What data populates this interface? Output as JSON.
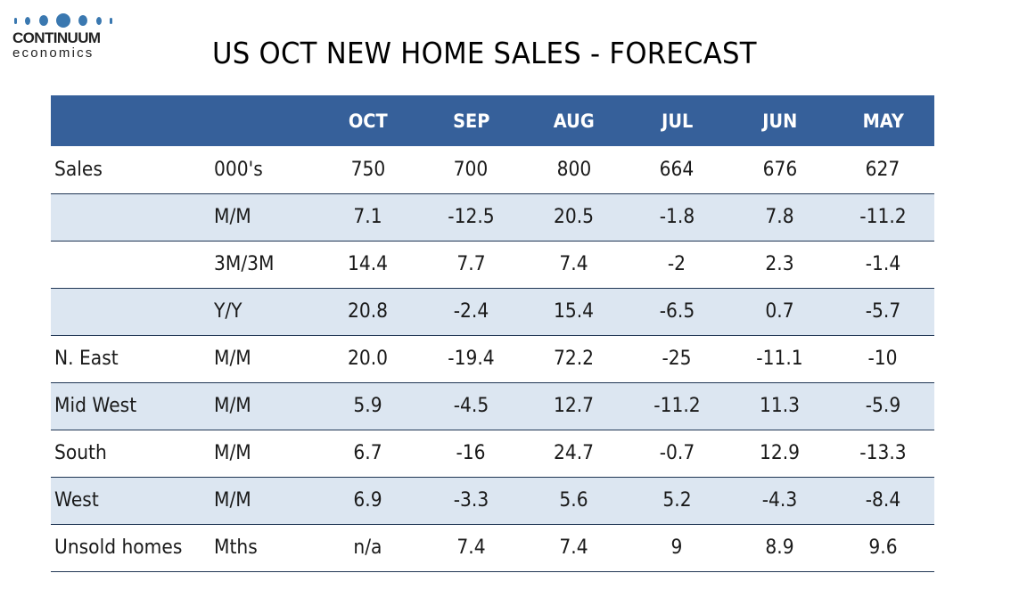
{
  "logo": {
    "brand": "CONTINUUM",
    "sub": "economics",
    "accent_color": "#3a78b0"
  },
  "title": "US OCT NEW HOME SALES - FORECAST",
  "table": {
    "header_color": "#36609a",
    "shaded_row_color": "#dce6f1",
    "columns": [
      "",
      "",
      "OCT",
      "SEP",
      "AUG",
      "JUL",
      "JUN",
      "MAY"
    ],
    "rows": [
      {
        "label": "Sales",
        "unit": "000's",
        "values": [
          "750",
          "700",
          "800",
          "664",
          "676",
          "627"
        ]
      },
      {
        "label": "",
        "unit": "M/M",
        "values": [
          "7.1",
          "-12.5",
          "20.5",
          "-1.8",
          "7.8",
          "-11.2"
        ]
      },
      {
        "label": "",
        "unit": "3M/3M",
        "values": [
          "14.4",
          "7.7",
          "7.4",
          "-2",
          "2.3",
          "-1.4"
        ]
      },
      {
        "label": "",
        "unit": "Y/Y",
        "values": [
          "20.8",
          "-2.4",
          "15.4",
          "-6.5",
          "0.7",
          "-5.7"
        ]
      },
      {
        "label": "N. East",
        "unit": "M/M",
        "values": [
          "20.0",
          "-19.4",
          "72.2",
          "-25",
          "-11.1",
          "-10"
        ]
      },
      {
        "label": "Mid West",
        "unit": "M/M",
        "values": [
          "5.9",
          "-4.5",
          "12.7",
          "-11.2",
          "11.3",
          "-5.9"
        ]
      },
      {
        "label": "South",
        "unit": "M/M",
        "values": [
          "6.7",
          "-16",
          "24.7",
          "-0.7",
          "12.9",
          "-13.3"
        ]
      },
      {
        "label": "West",
        "unit": "M/M",
        "values": [
          "6.9",
          "-3.3",
          "5.6",
          "5.2",
          "-4.3",
          "-8.4"
        ]
      },
      {
        "label": "Unsold homes",
        "unit": "Mths",
        "values": [
          "n/a",
          "7.4",
          "7.4",
          "9",
          "8.9",
          "9.6"
        ]
      }
    ]
  }
}
